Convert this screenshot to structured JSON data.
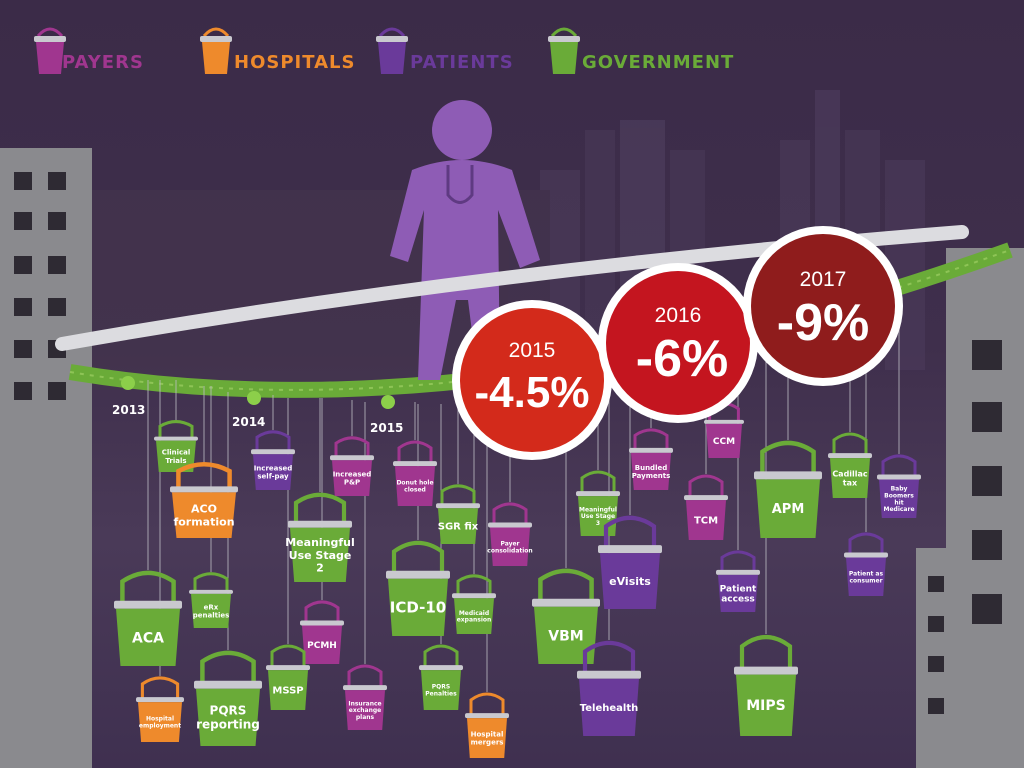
{
  "legend": [
    {
      "label": "PAYERS",
      "color": "#a0368f"
    },
    {
      "label": "HOSPITALS",
      "color": "#ee8a2c"
    },
    {
      "label": "PATIENTS",
      "color": "#6a3a9a"
    },
    {
      "label": "GOVERNMENT",
      "color": "#6aab38"
    }
  ],
  "timeline_years": [
    "2013",
    "2014",
    "2015"
  ],
  "cuts": [
    {
      "year": "2015",
      "value": "-4.5%",
      "color": "#d32a1b"
    },
    {
      "year": "2016",
      "value": "-6%",
      "color": "#c4151f"
    },
    {
      "year": "2017",
      "value": "-9%",
      "color": "#8f1c1c"
    }
  ],
  "buckets": [
    {
      "label": "Clinical Trials",
      "group": "government"
    },
    {
      "label": "ACO formation",
      "group": "hospitals"
    },
    {
      "label": "ACA",
      "group": "government"
    },
    {
      "label": "eRx penalties",
      "group": "government"
    },
    {
      "label": "Hospital employment",
      "group": "hospitals"
    },
    {
      "label": "PQRS reporting",
      "group": "government"
    },
    {
      "label": "Increased self-pay",
      "group": "patients"
    },
    {
      "label": "Meaningful Use Stage 2",
      "group": "government"
    },
    {
      "label": "PCMH",
      "group": "payers"
    },
    {
      "label": "MSSP",
      "group": "government"
    },
    {
      "label": "Increased P&P",
      "group": "payers"
    },
    {
      "label": "Insurance exchange plans",
      "group": "payers"
    },
    {
      "label": "Donut hole closed",
      "group": "payers"
    },
    {
      "label": "SGR fix",
      "group": "government"
    },
    {
      "label": "ICD-10",
      "group": "government"
    },
    {
      "label": "Medicaid expansion",
      "group": "government"
    },
    {
      "label": "PQRS Penalties",
      "group": "government"
    },
    {
      "label": "Payer consolidation",
      "group": "payers"
    },
    {
      "label": "Hospital mergers",
      "group": "hospitals"
    },
    {
      "label": "VBM",
      "group": "government"
    },
    {
      "label": "Meaningful Use Stage 3",
      "group": "government"
    },
    {
      "label": "eVisits",
      "group": "patients"
    },
    {
      "label": "Telehealth",
      "group": "patients"
    },
    {
      "label": "Bundled Payments",
      "group": "payers"
    },
    {
      "label": "CCM",
      "group": "payers"
    },
    {
      "label": "TCM",
      "group": "payers"
    },
    {
      "label": "Patient access",
      "group": "patients"
    },
    {
      "label": "APM",
      "group": "government"
    },
    {
      "label": "MIPS",
      "group": "government"
    },
    {
      "label": "Cadillac tax",
      "group": "government"
    },
    {
      "label": "Patient as consumer",
      "group": "patients"
    },
    {
      "label": "Baby Boomers hit Medicare",
      "group": "patients"
    }
  ],
  "group_colors": {
    "payers": "#a0368f",
    "hospitals": "#ee8a2c",
    "patients": "#6a3a9a",
    "government": "#6aab38"
  }
}
